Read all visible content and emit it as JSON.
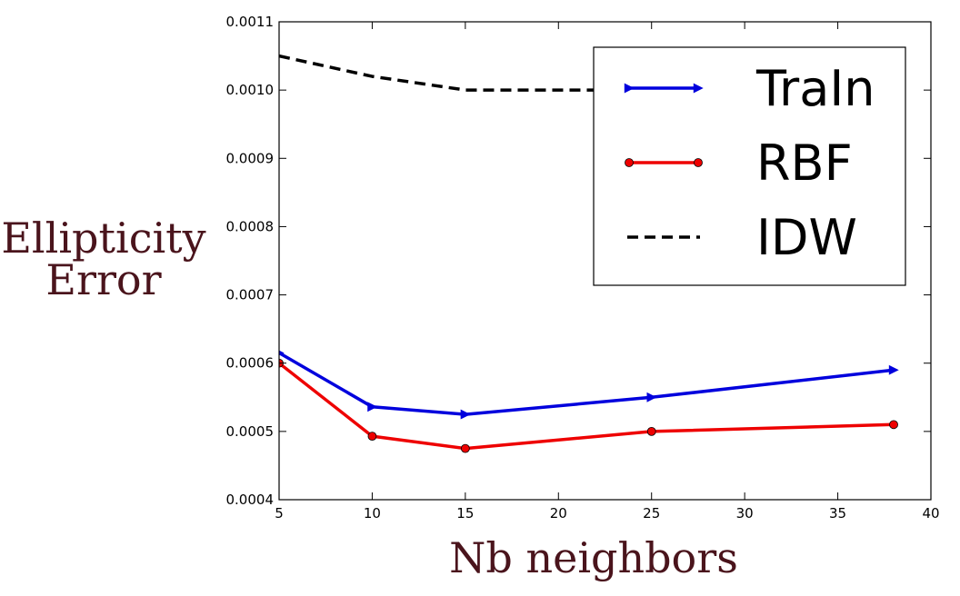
{
  "chart_data": {
    "type": "line",
    "title": "",
    "xlabel": "Nb neighbors",
    "ylabel_lines": [
      "Ellipticity",
      "Error"
    ],
    "xlim": [
      5,
      40
    ],
    "ylim": [
      0.0004,
      0.0011
    ],
    "x_ticks": [
      5,
      10,
      15,
      20,
      25,
      30,
      35,
      40
    ],
    "x_tick_labels": [
      "5",
      "10",
      "15",
      "20",
      "25",
      "30",
      "35",
      "40"
    ],
    "y_ticks": [
      0.0004,
      0.0005,
      0.0006,
      0.0007,
      0.0008,
      0.0009,
      0.001,
      0.0011
    ],
    "y_tick_labels": [
      "0.0004",
      "0.0005",
      "0.0006",
      "0.0007",
      "0.0008",
      "0.0009",
      "0.0010",
      "0.0011"
    ],
    "grid": false,
    "legend_position": "top-right",
    "series": [
      {
        "name": "TraIn",
        "color": "#0000dd",
        "marker": "triangle-right",
        "dashed": false,
        "x": [
          5,
          10,
          15,
          25,
          38
        ],
        "y": [
          0.000615,
          0.000536,
          0.000525,
          0.00055,
          0.00059
        ]
      },
      {
        "name": "RBF",
        "color": "#ee0000",
        "marker": "circle",
        "dashed": false,
        "x": [
          5,
          10,
          15,
          25,
          38
        ],
        "y": [
          0.0006,
          0.000493,
          0.000475,
          0.0005,
          0.00051
        ]
      },
      {
        "name": "IDW",
        "color": "#000000",
        "marker": "none",
        "dashed": true,
        "x": [
          5,
          10,
          15,
          25,
          38
        ],
        "y": [
          0.00105,
          0.00102,
          0.001,
          0.001,
          0.001
        ]
      }
    ]
  }
}
